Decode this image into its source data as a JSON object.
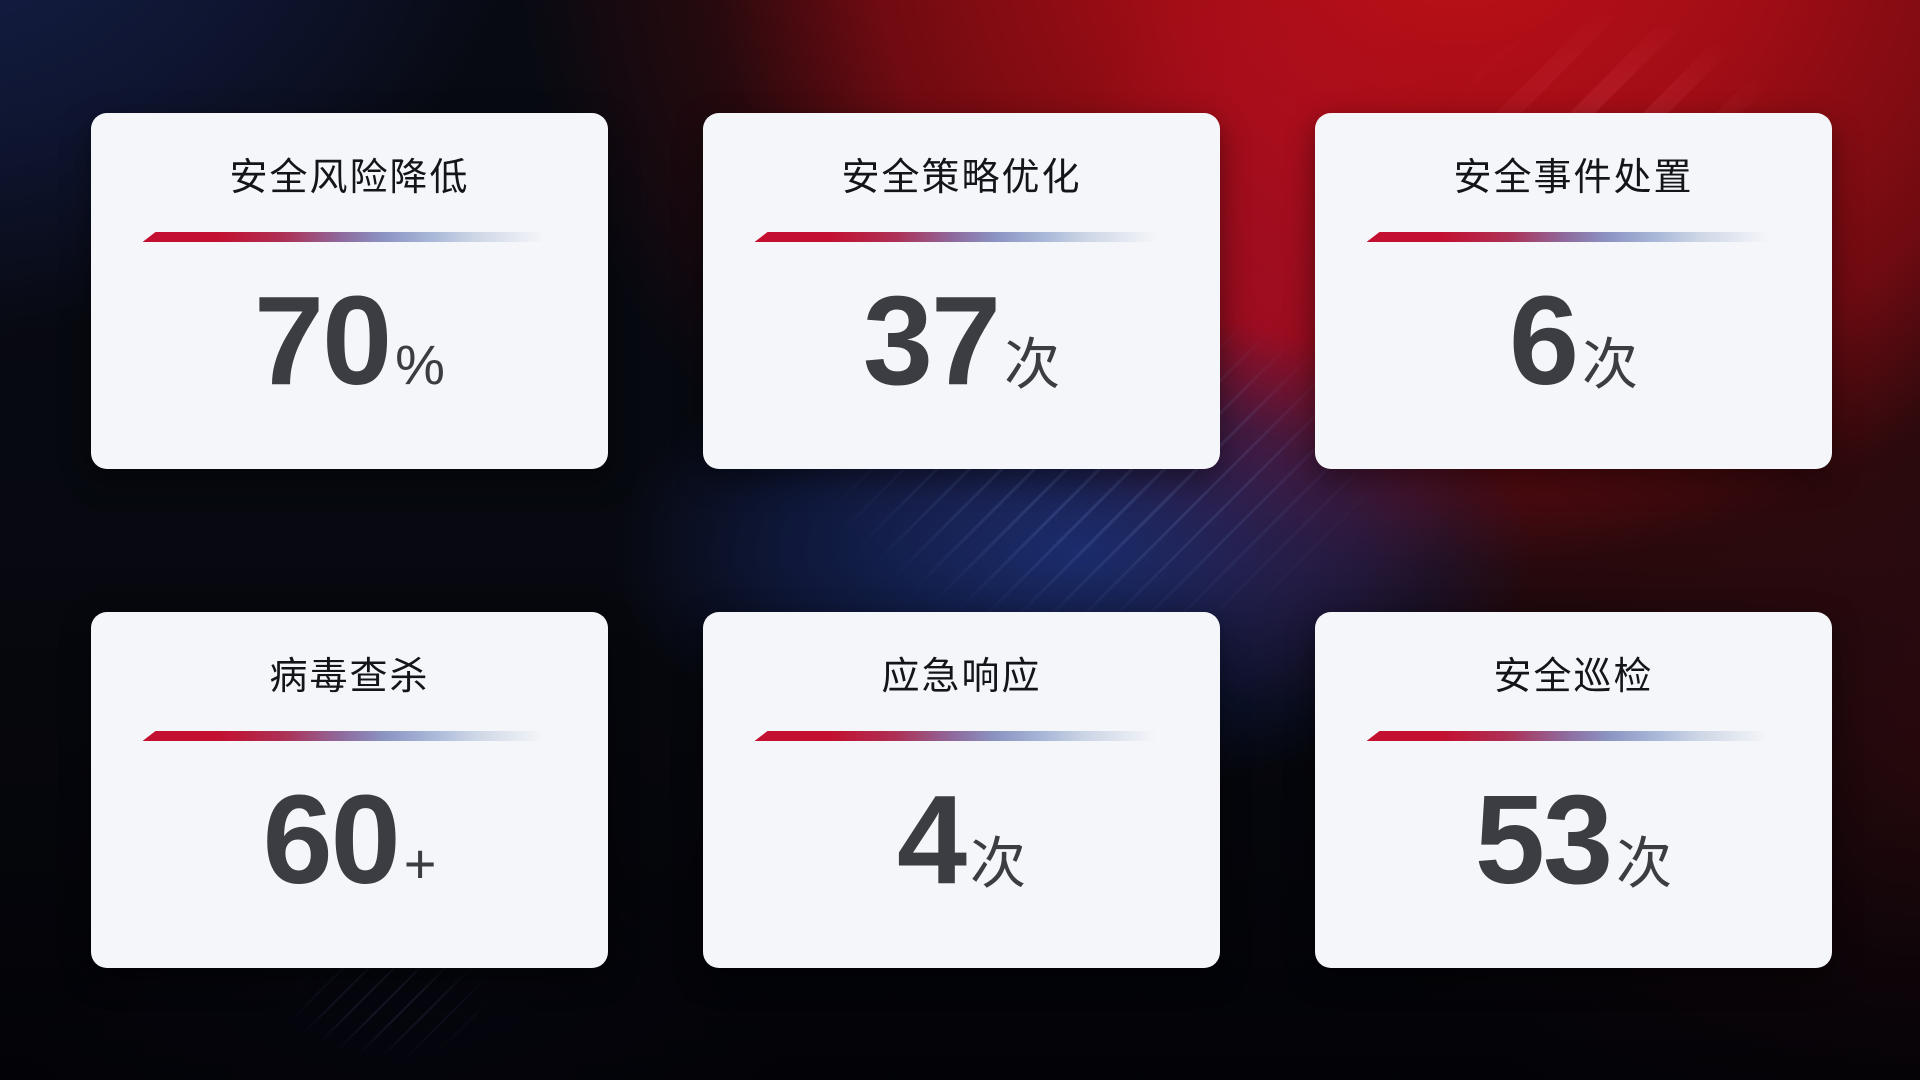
{
  "cards": [
    {
      "title": "安全风险降低",
      "value": "70",
      "unit": "%"
    },
    {
      "title": "安全策略优化",
      "value": "37",
      "unit": "次"
    },
    {
      "title": "安全事件处置",
      "value": "6",
      "unit": "次"
    },
    {
      "title": "病毒查杀",
      "value": "60",
      "unit": "+"
    },
    {
      "title": "应急响应",
      "value": "4",
      "unit": "次"
    },
    {
      "title": "安全巡检",
      "value": "53",
      "unit": "次"
    }
  ],
  "colors": {
    "card_background": "#f5f6f9",
    "title_text": "#141519",
    "value_text": "#3c3d42",
    "divider_gradient_start": "#c31030",
    "divider_gradient_mid": "#8e6a9e",
    "divider_gradient_end": "#a9b8d8",
    "background_red_glow": "#a20d15",
    "background_navy_glow": "#16214b",
    "background_blue_glow": "#1b2f74",
    "background_base": "#06070d"
  }
}
